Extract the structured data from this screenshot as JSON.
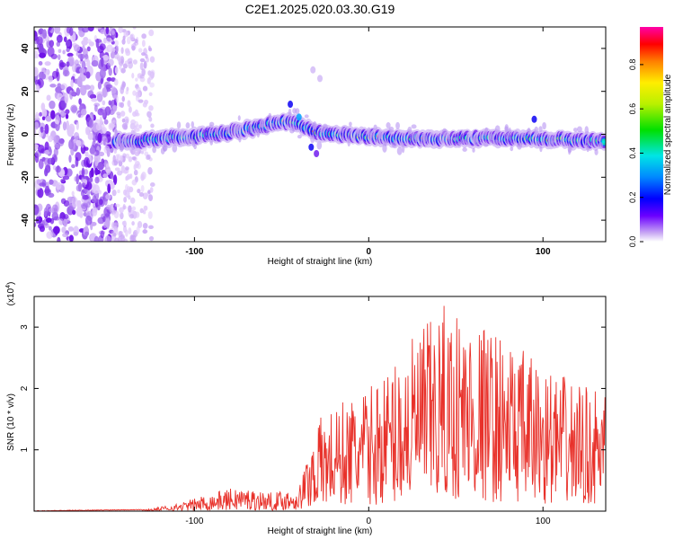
{
  "title": "C2E1.2025.020.03.30.G19",
  "chart_data": [
    {
      "type": "heatmap",
      "xlabel": "Height of straight line (km)",
      "ylabel": "Frequency (Hz)",
      "xlim": [
        -192,
        136
      ],
      "ylim": [
        -50,
        50
      ],
      "x_ticks": [
        -100,
        0,
        100
      ],
      "y_ticks": [
        -40,
        -20,
        0,
        20,
        40
      ],
      "colorbar": {
        "label": "Normalized spectral amplitude",
        "ticks": [
          0.0,
          0.2,
          0.4,
          0.6,
          0.8
        ],
        "range": [
          0,
          0.97
        ]
      },
      "ridge": [
        {
          "x": -140,
          "f": -4
        },
        {
          "x": -120,
          "f": -2
        },
        {
          "x": -100,
          "f": -1
        },
        {
          "x": -80,
          "f": 1
        },
        {
          "x": -65,
          "f": 3
        },
        {
          "x": -50,
          "f": 6
        },
        {
          "x": -40,
          "f": 5
        },
        {
          "x": -30,
          "f": 1
        },
        {
          "x": -20,
          "f": 0
        },
        {
          "x": 0,
          "f": -1
        },
        {
          "x": 20,
          "f": -2
        },
        {
          "x": 50,
          "f": -2
        },
        {
          "x": 80,
          "f": -2
        },
        {
          "x": 100,
          "f": -2
        },
        {
          "x": 120,
          "f": -3
        },
        {
          "x": 136,
          "f": -3
        }
      ]
    },
    {
      "type": "line",
      "xlabel": "Height of straight line (km)",
      "ylabel": "SNR (10 * v/v)",
      "y_multiplier": "(x10",
      "y_multiplier_exp": "4",
      "y_multiplier_close": ")",
      "xlim": [
        -192,
        136
      ],
      "ylim": [
        0,
        3.5
      ],
      "x_ticks": [
        -100,
        0,
        100
      ],
      "y_ticks": [
        1,
        2,
        3
      ],
      "line_color": "#e8312a",
      "envelope": [
        {
          "x": -192,
          "y": 0.0
        },
        {
          "x": -130,
          "y": 0.02
        },
        {
          "x": -110,
          "y": 0.12
        },
        {
          "x": -90,
          "y": 0.3
        },
        {
          "x": -75,
          "y": 0.4
        },
        {
          "x": -55,
          "y": 0.3
        },
        {
          "x": -40,
          "y": 0.4
        },
        {
          "x": -30,
          "y": 1.5
        },
        {
          "x": -15,
          "y": 1.8
        },
        {
          "x": 0,
          "y": 2.0
        },
        {
          "x": 15,
          "y": 2.5
        },
        {
          "x": 30,
          "y": 3.0
        },
        {
          "x": 45,
          "y": 3.4
        },
        {
          "x": 60,
          "y": 3.2
        },
        {
          "x": 75,
          "y": 2.9
        },
        {
          "x": 90,
          "y": 2.6
        },
        {
          "x": 105,
          "y": 2.3
        },
        {
          "x": 120,
          "y": 2.1
        },
        {
          "x": 136,
          "y": 1.9
        }
      ]
    }
  ]
}
